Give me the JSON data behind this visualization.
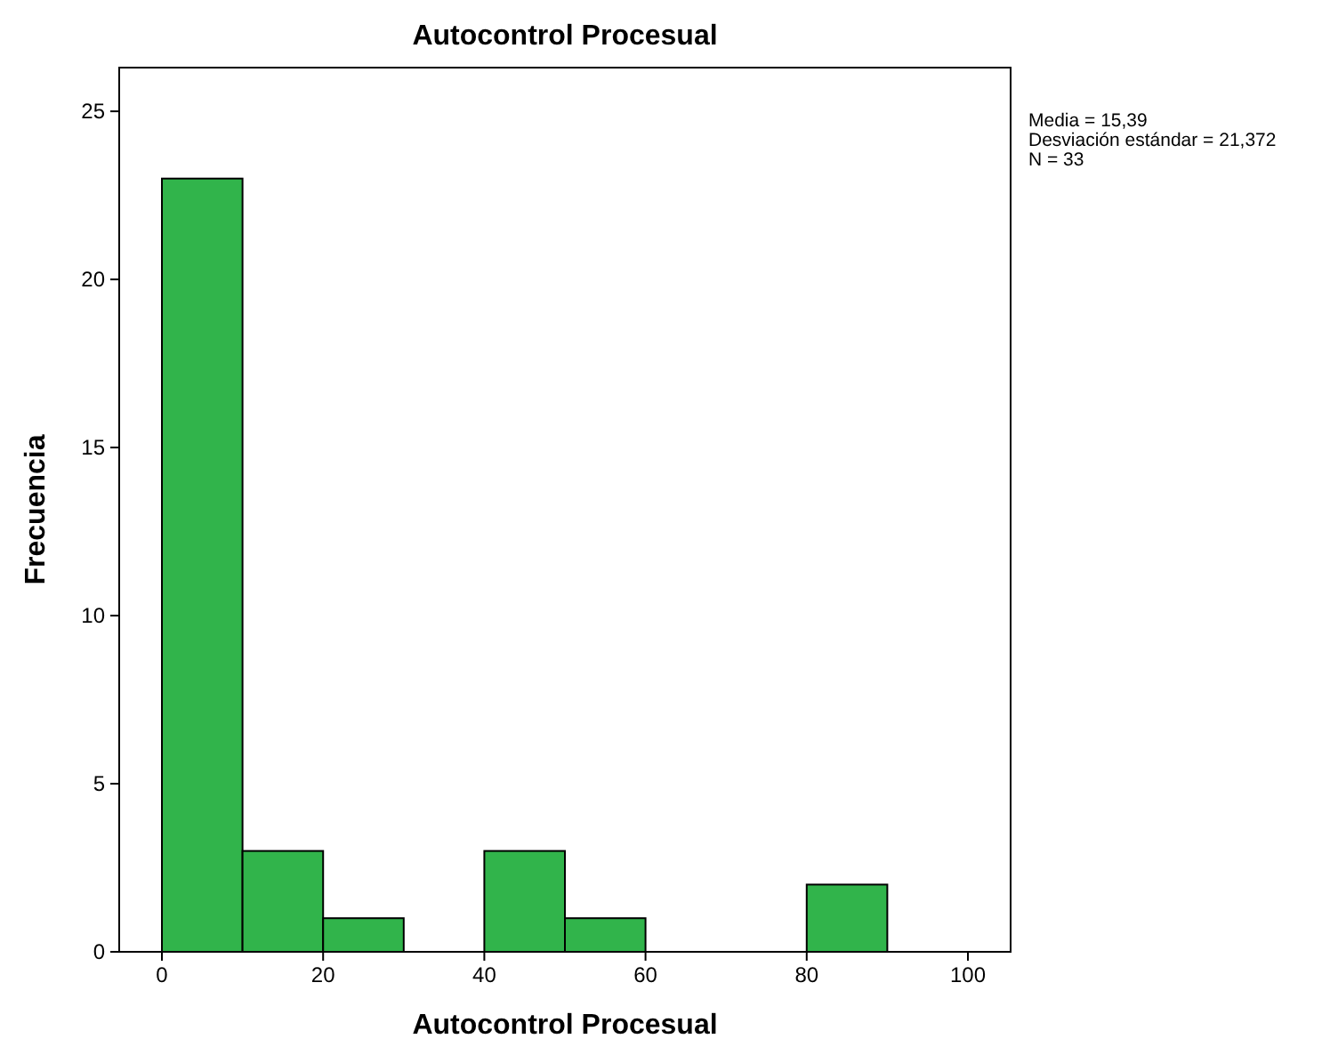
{
  "chart_data": {
    "type": "histogram",
    "title": "Autocontrol Procesual",
    "xlabel": "Autocontrol Procesual",
    "ylabel": "Frecuencia",
    "bins": [
      0,
      10,
      20,
      30,
      40,
      50,
      60,
      70,
      80,
      90,
      100
    ],
    "values": [
      23,
      3,
      1,
      0,
      3,
      1,
      0,
      0,
      2,
      0
    ],
    "color": "#31b44b",
    "xlim": [
      -5.3,
      105.3
    ],
    "xticks": [
      0,
      20,
      40,
      60,
      80,
      100
    ],
    "ylim": [
      0,
      26.3
    ],
    "yticks": [
      0,
      5,
      10,
      15,
      20,
      25
    ],
    "annotations": [
      "Media = 15,39",
      "Desviación estándar = 21,372",
      "N = 33"
    ]
  }
}
